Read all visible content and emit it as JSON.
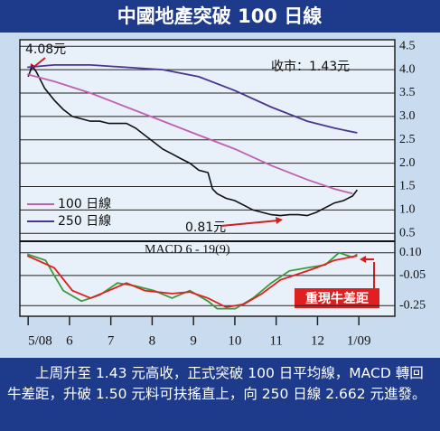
{
  "title": "中國地產突破 100 日線",
  "chart_data": [
    {
      "type": "line",
      "xlim": [
        -0.2,
        8.87
      ],
      "ylim": [
        0.37,
        4.64
      ],
      "yticks": [
        4.5,
        {
          "value": 4,
          "label": "4.0"
        },
        3.5,
        {
          "value": 3,
          "label": "3.0"
        },
        2.5,
        {
          "value": 2,
          "label": "2.0"
        },
        1.5,
        {
          "value": 1,
          "label": "1.0"
        },
        0.5
      ],
      "grid": true,
      "series": [
        {
          "color": "#111111",
          "x": [
            0,
            0.1,
            0.2,
            0.4,
            0.63,
            0.85,
            1.07,
            1.29,
            1.5,
            1.73,
            1.95,
            2.16,
            2.38,
            2.6,
            2.82,
            3.04,
            3.26,
            3.48,
            3.69,
            3.91,
            4.13,
            4.35,
            4.46,
            4.57,
            4.79,
            5.0,
            5.22,
            5.44,
            5.66,
            5.88,
            6.1,
            6.32,
            6.54,
            6.75,
            6.97,
            7.19,
            7.41,
            7.63,
            7.85,
            7.96
          ],
          "values": [
            3.85,
            4.08,
            3.95,
            3.6,
            3.35,
            3.15,
            3.0,
            2.95,
            2.9,
            2.9,
            2.85,
            2.85,
            2.85,
            2.75,
            2.6,
            2.45,
            2.3,
            2.2,
            2.1,
            2.0,
            1.85,
            1.8,
            1.45,
            1.35,
            1.25,
            1.2,
            1.1,
            1.0,
            0.95,
            0.9,
            0.88,
            0.9,
            0.9,
            0.88,
            0.95,
            1.05,
            1.15,
            1.2,
            1.3,
            1.43
          ]
        },
        {
          "name": "100 日線",
          "color": "#c060b0",
          "x": [
            -0.02,
            0.63,
            1.51,
            2.38,
            3.26,
            4.13,
            5.01,
            5.88,
            6.75,
            7.41,
            7.85
          ],
          "values": [
            3.9,
            3.75,
            3.5,
            3.2,
            2.9,
            2.6,
            2.3,
            1.95,
            1.65,
            1.45,
            1.35
          ]
        },
        {
          "name": "250 日線",
          "color": "#4a3590",
          "x": [
            -0.02,
            0.63,
            1.51,
            2.38,
            3.26,
            4.13,
            5.01,
            5.88,
            6.75,
            7.41,
            7.96
          ],
          "values": [
            4.05,
            4.1,
            4.1,
            4.05,
            4.0,
            3.85,
            3.55,
            3.2,
            2.9,
            2.75,
            2.65
          ]
        }
      ],
      "annotations": [
        "4.08元",
        "收市：1.43元",
        "0.81元"
      ]
    },
    {
      "type": "line",
      "title": "MACD 6 - 19(9)",
      "xlim": [
        -0.2,
        8.87
      ],
      "ylim": [
        -0.32,
        0.17
      ],
      "yticks": [
        {
          "value": 0.1,
          "label": "0.10"
        },
        -0.05,
        -0.25
      ],
      "grid": true,
      "xticks": [
        {
          "value": 0,
          "label": "5/08"
        },
        {
          "value": 1,
          "label": "6"
        },
        {
          "value": 2,
          "label": "7"
        },
        {
          "value": 3,
          "label": "8"
        },
        {
          "value": 4,
          "label": "9"
        },
        {
          "value": 5,
          "label": "10"
        },
        {
          "value": 6,
          "label": "11"
        },
        {
          "value": 7,
          "label": "12"
        },
        {
          "value": 8,
          "label": "1/09"
        }
      ],
      "series": [
        {
          "color": "#3a9a3a",
          "x": [
            -0.02,
            0.42,
            0.63,
            0.85,
            1.29,
            1.73,
            2.16,
            2.6,
            3.04,
            3.48,
            3.91,
            4.35,
            4.57,
            5.01,
            5.44,
            5.88,
            6.32,
            6.75,
            7.19,
            7.52,
            7.85,
            7.96
          ],
          "values": [
            0.09,
            0.05,
            -0.05,
            -0.15,
            -0.22,
            -0.18,
            -0.1,
            -0.12,
            -0.15,
            -0.2,
            -0.15,
            -0.22,
            -0.27,
            -0.27,
            -0.2,
            -0.1,
            -0.02,
            0.0,
            0.02,
            0.1,
            0.07,
            0.09
          ]
        },
        {
          "color": "#e02020",
          "x": [
            -0.02,
            0.63,
            1.07,
            1.51,
            1.95,
            2.38,
            2.82,
            3.48,
            3.91,
            4.35,
            4.79,
            5.22,
            5.66,
            6.1,
            6.54,
            6.97,
            7.41,
            7.96
          ],
          "values": [
            0.08,
            0.0,
            -0.15,
            -0.2,
            -0.15,
            -0.1,
            -0.15,
            -0.17,
            -0.16,
            -0.2,
            -0.26,
            -0.24,
            -0.17,
            -0.08,
            -0.04,
            0.0,
            0.05,
            0.08
          ]
        }
      ],
      "annotations": [
        "重現牛差距"
      ]
    }
  ],
  "caption": "上周升至 1.43 元高收，正式突破 100 日平均線，MACD 轉回牛差距，升破 1.50 元料可扶搖直上，向 250 日線 2.662 元進發。"
}
